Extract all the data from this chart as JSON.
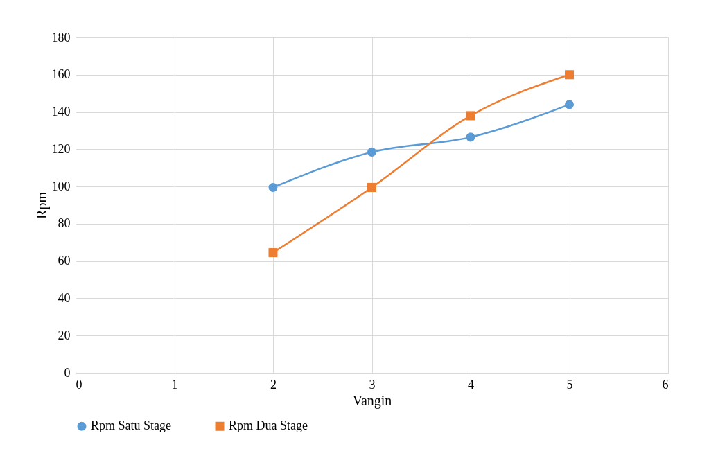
{
  "chart_data": {
    "type": "line",
    "xlabel": "Vangin",
    "ylabel": "Rpm",
    "x": [
      2,
      3,
      4,
      5
    ],
    "series": [
      {
        "name": "Rpm Satu Stage",
        "color": "#5b9bd5",
        "marker": "circle",
        "values": [
          99.5,
          118.5,
          126.5,
          144
        ]
      },
      {
        "name": "Rpm Dua Stage",
        "color": "#ed7d31",
        "marker": "square",
        "values": [
          64.5,
          99.5,
          138,
          160
        ]
      }
    ],
    "xlim": [
      0,
      6
    ],
    "xticks": [
      0,
      1,
      2,
      3,
      4,
      5,
      6
    ],
    "ylim": [
      0,
      180
    ],
    "yticks": [
      0,
      20,
      40,
      60,
      80,
      100,
      120,
      140,
      160,
      180
    ],
    "grid": true,
    "legend": "bottom",
    "line_style": "solid"
  }
}
